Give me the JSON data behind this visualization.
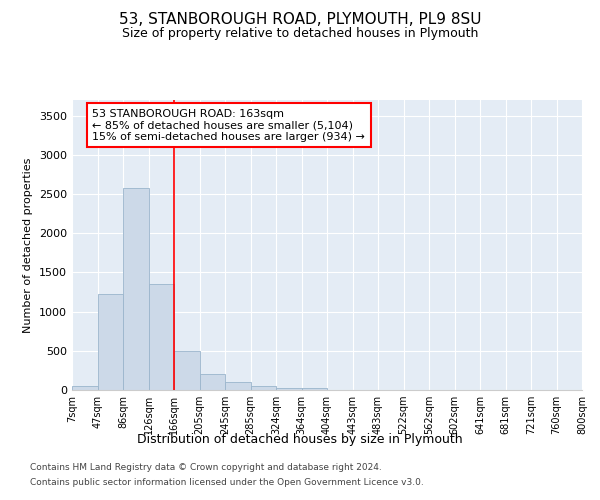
{
  "title": "53, STANBOROUGH ROAD, PLYMOUTH, PL9 8SU",
  "subtitle": "Size of property relative to detached houses in Plymouth",
  "xlabel": "Distribution of detached houses by size in Plymouth",
  "ylabel": "Number of detached properties",
  "bar_color": "#ccd9e8",
  "bar_edge_color": "#9ab5cc",
  "background_color": "#e4ecf5",
  "grid_color": "#ffffff",
  "red_line_x": 4,
  "annotation_line1": "53 STANBOROUGH ROAD: 163sqm",
  "annotation_line2": "← 85% of detached houses are smaller (5,104)",
  "annotation_line3": "15% of semi-detached houses are larger (934) →",
  "footer1": "Contains HM Land Registry data © Crown copyright and database right 2024.",
  "footer2": "Contains public sector information licensed under the Open Government Licence v3.0.",
  "bins": [
    "7sqm",
    "47sqm",
    "86sqm",
    "126sqm",
    "166sqm",
    "205sqm",
    "245sqm",
    "285sqm",
    "324sqm",
    "364sqm",
    "404sqm",
    "443sqm",
    "483sqm",
    "522sqm",
    "562sqm",
    "602sqm",
    "641sqm",
    "681sqm",
    "721sqm",
    "760sqm",
    "800sqm"
  ],
  "values": [
    50,
    1230,
    2580,
    1350,
    500,
    200,
    100,
    50,
    30,
    30,
    0,
    0,
    0,
    0,
    0,
    0,
    0,
    0,
    0,
    0
  ],
  "ylim": [
    0,
    3700
  ],
  "yticks": [
    0,
    500,
    1000,
    1500,
    2000,
    2500,
    3000,
    3500
  ]
}
